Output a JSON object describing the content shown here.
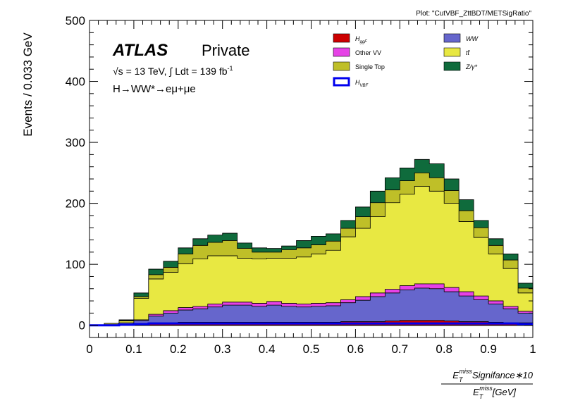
{
  "plot_label": "Plot: \"CutVBF_ZttBDT/METSigRatio\"",
  "atlas": {
    "label": "ATLAS",
    "status": "Private"
  },
  "energy_text": "√s = 13 TeV, ∫ Ldt = 139 fb",
  "lumi_exp": "-1",
  "channel_text": "H→WW*→eμ+μe",
  "chart_data": {
    "type": "area",
    "title": "",
    "xlabel": {
      "numerator": "E_T^miss Signifance∗10",
      "denominator": "E_T^miss [GeV]"
    },
    "ylabel": "Events / 0.033 GeV",
    "xlim": [
      0,
      1
    ],
    "ylim": [
      -20,
      500
    ],
    "x_ticks": [
      "0",
      "0.1",
      "0.2",
      "0.3",
      "0.4",
      "0.5",
      "0.6",
      "0.7",
      "0.8",
      "0.9",
      "1"
    ],
    "y_ticks": [
      "0",
      "100",
      "200",
      "300",
      "400",
      "500"
    ],
    "bin_edges": [
      0,
      0.0333,
      0.0667,
      0.1,
      0.1333,
      0.1667,
      0.2,
      0.2333,
      0.2667,
      0.3,
      0.3333,
      0.3667,
      0.4,
      0.4333,
      0.4667,
      0.5,
      0.5333,
      0.5667,
      0.6,
      0.6333,
      0.6667,
      0.7,
      0.7333,
      0.7667,
      0.8,
      0.8333,
      0.8667,
      0.9,
      0.9333,
      0.9667,
      1.0
    ],
    "stacked": true,
    "series": [
      {
        "name": "H_ggF",
        "legend": "H",
        "legend_sub": "ggF",
        "color": "#cc0000",
        "values": [
          0,
          0,
          1,
          3,
          4,
          4,
          5,
          5,
          5,
          5,
          5,
          5,
          5,
          5,
          5,
          5,
          5,
          6,
          6,
          6,
          7,
          8,
          8,
          8,
          7,
          6,
          6,
          5,
          4,
          4
        ]
      },
      {
        "name": "WW",
        "legend": "WW",
        "color": "#6666cc",
        "values": [
          0,
          1,
          3,
          5,
          11,
          16,
          20,
          22,
          25,
          28,
          28,
          26,
          28,
          26,
          25,
          26,
          27,
          31,
          35,
          41,
          46,
          50,
          53,
          52,
          48,
          42,
          36,
          30,
          23,
          16
        ]
      },
      {
        "name": "Other VV",
        "legend": "Other VV",
        "color": "#e642e6",
        "values": [
          0,
          0,
          0,
          1,
          3,
          4,
          4,
          4,
          5,
          5,
          5,
          5,
          6,
          5,
          5,
          5,
          5,
          5,
          6,
          6,
          6,
          7,
          7,
          8,
          7,
          7,
          6,
          5,
          4,
          3
        ]
      },
      {
        "name": "ttbar",
        "legend": "tt̄",
        "color": "#e8e842",
        "values": [
          0,
          2,
          3,
          35,
          58,
          63,
          72,
          78,
          79,
          76,
          72,
          73,
          71,
          74,
          77,
          81,
          86,
          103,
          112,
          125,
          142,
          150,
          160,
          152,
          138,
          115,
          96,
          77,
          62,
          30
        ]
      },
      {
        "name": "Single Top",
        "legend": "Single Top",
        "color": "#bfbf28",
        "values": [
          0,
          0,
          1,
          3,
          7,
          8,
          16,
          22,
          22,
          25,
          16,
          11,
          10,
          14,
          15,
          15,
          15,
          14,
          19,
          23,
          21,
          22,
          22,
          22,
          21,
          18,
          16,
          14,
          14,
          8
        ]
      },
      {
        "name": "Z/gamma*",
        "legend": "Z/γ*",
        "color": "#0f6b3c",
        "values": [
          0,
          0,
          1,
          6,
          9,
          10,
          10,
          11,
          12,
          12,
          9,
          7,
          6,
          6,
          12,
          14,
          12,
          13,
          16,
          19,
          20,
          21,
          22,
          23,
          19,
          18,
          12,
          11,
          10,
          8
        ]
      },
      {
        "name": "H_VBF",
        "legend": "H",
        "legend_sub": "VBF",
        "color": "#0000ee",
        "overlay": true,
        "values": [
          0,
          0,
          1,
          2,
          3,
          3,
          3,
          3,
          3,
          3,
          3,
          3,
          3,
          3,
          3,
          3,
          3,
          3,
          3,
          3,
          3,
          3,
          3,
          3,
          3,
          3,
          3,
          3,
          3,
          2
        ]
      }
    ],
    "legend": {
      "placement": "top-right",
      "columns": 2
    }
  }
}
